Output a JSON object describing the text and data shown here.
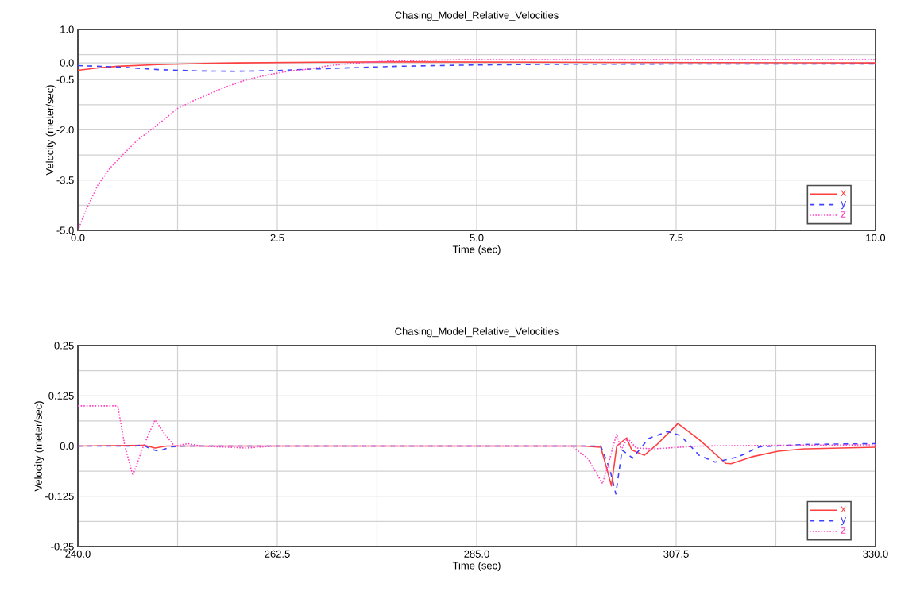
{
  "chart_data": [
    {
      "type": "line",
      "title": "Chasing_Model_Relative_Velocities",
      "xlabel": "Time (sec)",
      "ylabel": "Velocity (meter/sec)",
      "xlim": [
        0,
        10
      ],
      "ylim": [
        -5,
        1
      ],
      "xticks": [
        {
          "value": 0,
          "label": "0.0"
        },
        {
          "value": 1.25,
          "label": null
        },
        {
          "value": 2.5,
          "label": "2.5"
        },
        {
          "value": 3.75,
          "label": null
        },
        {
          "value": 5,
          "label": "5.0"
        },
        {
          "value": 6.25,
          "label": null
        },
        {
          "value": 7.5,
          "label": "7.5"
        },
        {
          "value": 8.75,
          "label": null
        },
        {
          "value": 10,
          "label": "10.0"
        }
      ],
      "yticks": [
        {
          "value": -5,
          "label": "-5.0"
        },
        {
          "value": -4.25,
          "label": null
        },
        {
          "value": -3.5,
          "label": "-3.5"
        },
        {
          "value": -2.75,
          "label": null
        },
        {
          "value": -2,
          "label": "-2.0"
        },
        {
          "value": -1.25,
          "label": null
        },
        {
          "value": -0.5,
          "label": "-0.5"
        },
        {
          "value": 0,
          "label": "0.0"
        },
        {
          "value": 0.25,
          "label": null
        },
        {
          "value": 1,
          "label": "1.0"
        }
      ],
      "grid": true,
      "legend": "bottom right",
      "series": [
        {
          "name": "x",
          "color": "#ff4040",
          "line_style": "solid",
          "x": [
            0,
            0.25,
            0.5,
            1.0,
            1.5,
            2.0,
            3.0,
            4.0,
            6.0,
            8.0,
            10.0
          ],
          "values": [
            -0.22,
            -0.15,
            -0.1,
            -0.05,
            -0.02,
            0.0,
            0.02,
            0.03,
            0.02,
            0.01,
            0.0
          ]
        },
        {
          "name": "y",
          "color": "#4040ff",
          "line_style": "dashed",
          "x": [
            0,
            0.5,
            1.0,
            1.5,
            2.0,
            2.5,
            3.0,
            4.0,
            5.0,
            6.0,
            8.0,
            10.0
          ],
          "values": [
            -0.08,
            -0.12,
            -0.2,
            -0.24,
            -0.25,
            -0.23,
            -0.18,
            -0.1,
            -0.06,
            -0.04,
            -0.03,
            -0.03
          ]
        },
        {
          "name": "z",
          "color": "#ff40c0",
          "line_style": "dotted",
          "x": [
            0,
            0.1,
            0.25,
            0.4,
            0.58,
            0.75,
            0.92,
            1.1,
            1.25,
            1.45,
            1.64,
            1.85,
            2.08,
            2.3,
            2.51,
            2.7,
            2.91,
            3.15,
            3.41,
            3.65,
            3.9,
            4.4,
            4.9,
            6,
            8,
            10
          ],
          "values": [
            -5.0,
            -4.4,
            -3.65,
            -3.15,
            -2.7,
            -2.3,
            -1.99,
            -1.65,
            -1.36,
            -1.13,
            -0.93,
            -0.72,
            -0.53,
            -0.4,
            -0.3,
            -0.23,
            -0.18,
            -0.08,
            -0.02,
            0.02,
            0.06,
            0.08,
            0.1,
            0.1,
            0.1,
            0.1
          ]
        }
      ]
    },
    {
      "type": "line",
      "title": "Chasing_Model_Relative_Velocities",
      "xlabel": "Time (sec)",
      "ylabel": "Velocity (meter/sec)",
      "xlim": [
        240,
        330
      ],
      "ylim": [
        -0.25,
        0.25
      ],
      "xticks": [
        {
          "value": 240,
          "label": "240.0"
        },
        {
          "value": 251.25,
          "label": null
        },
        {
          "value": 262.5,
          "label": "262.5"
        },
        {
          "value": 273.75,
          "label": null
        },
        {
          "value": 285,
          "label": "285.0"
        },
        {
          "value": 296.25,
          "label": null
        },
        {
          "value": 307.5,
          "label": "307.5"
        },
        {
          "value": 318.75,
          "label": null
        },
        {
          "value": 330,
          "label": "330.0"
        }
      ],
      "yticks": [
        {
          "value": -0.25,
          "label": "-0.25"
        },
        {
          "value": -0.1875,
          "label": null
        },
        {
          "value": -0.125,
          "label": "-0.125"
        },
        {
          "value": -0.0625,
          "label": null
        },
        {
          "value": 0,
          "label": "0.0"
        },
        {
          "value": 0.0625,
          "label": null
        },
        {
          "value": 0.125,
          "label": "0.125"
        },
        {
          "value": 0.1875,
          "label": null
        },
        {
          "value": 0.25,
          "label": "0.25"
        }
      ],
      "grid": true,
      "legend": "bottom right",
      "series": [
        {
          "name": "x",
          "color": "#ff4040",
          "line_style": "solid",
          "x": [
            240,
            247.5,
            248.7,
            250,
            297,
            299,
            299.6,
            300.2,
            300.8,
            301.9,
            302.5,
            303.9,
            305.3,
            307.7,
            310.1,
            313.1,
            313.7,
            316,
            319,
            322,
            330
          ],
          "values": [
            0,
            0.002,
            -0.005,
            0,
            0,
            -0.003,
            -0.05,
            -0.099,
            0.0,
            0.02,
            -0.01,
            -0.023,
            0.003,
            0.056,
            0.016,
            -0.043,
            -0.044,
            -0.027,
            -0.013,
            -0.007,
            -0.003
          ]
        },
        {
          "name": "y",
          "color": "#4040ff",
          "line_style": "dashed",
          "x": [
            240,
            246.5,
            247.3,
            248.3,
            249.1,
            250.5,
            252,
            299,
            300,
            300.7,
            301.4,
            302.6,
            304.4,
            306.5,
            308,
            310.1,
            311.9,
            314.5,
            316.9,
            322,
            330
          ],
          "values": [
            0,
            0.0,
            0.003,
            -0.008,
            -0.013,
            -0.002,
            0,
            0,
            -0.056,
            -0.119,
            -0.01,
            -0.03,
            0.019,
            0.036,
            0.026,
            -0.023,
            -0.04,
            -0.027,
            -0.002,
            0.004,
            0.006
          ]
        },
        {
          "name": "z",
          "color": "#ff40c0",
          "line_style": "dotted",
          "x": [
            240,
            244.5,
            245.3,
            246.2,
            247.4,
            248.7,
            249.8,
            250.9,
            252.4,
            253.9,
            259,
            262,
            295.7,
            297.5,
            299.2,
            299.8,
            300.4,
            300.8,
            301.3,
            302,
            303,
            305,
            310,
            320,
            330
          ],
          "values": [
            0.1,
            0.1,
            0.0,
            -0.073,
            0.0,
            0.065,
            0.03,
            0.0,
            0.006,
            0.0,
            -0.005,
            0.0,
            0.0,
            -0.03,
            -0.093,
            -0.05,
            0.0,
            0.03,
            -0.01,
            0.02,
            -0.005,
            -0.007,
            0.0,
            0.002,
            0.003
          ]
        }
      ]
    }
  ]
}
